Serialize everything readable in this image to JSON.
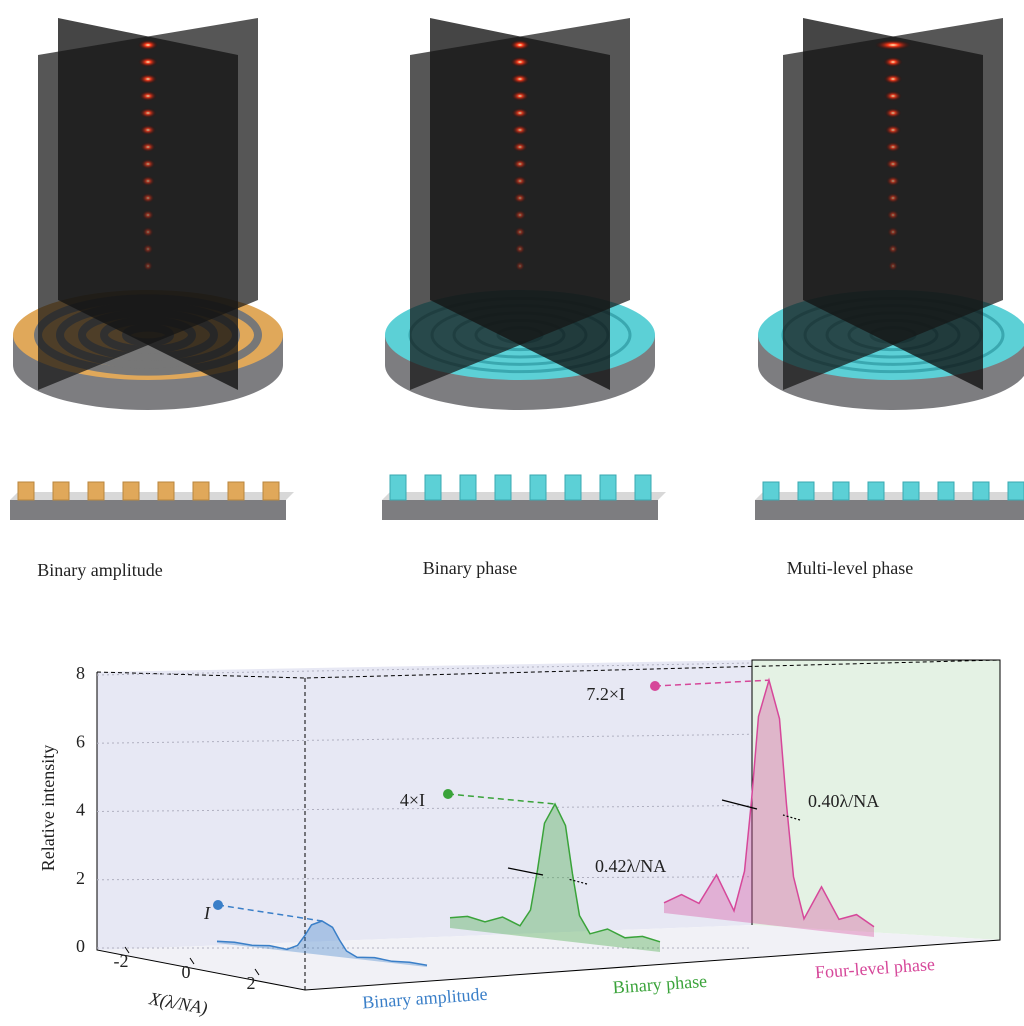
{
  "panels": [
    {
      "label": "Binary amplitude"
    },
    {
      "label": "Binary phase"
    },
    {
      "label": "Multi-level phase"
    }
  ],
  "chart_data": {
    "type": "line",
    "ylabel": "Relative intensity",
    "xlabel": "X(λ/NA)",
    "ylim": [
      0,
      8
    ],
    "yticks": [
      0,
      2,
      4,
      6,
      8
    ],
    "xlim": [
      -3,
      3
    ],
    "xticks": [
      -2,
      0,
      2
    ],
    "grid": true,
    "x": [
      -3,
      -2.5,
      -2,
      -1.5,
      -1,
      -0.7,
      -0.5,
      -0.3,
      0,
      0.3,
      0.5,
      0.7,
      1,
      1.5,
      2,
      2.5,
      3
    ],
    "series": [
      {
        "name": "Binary amplitude",
        "color": "#3a7fc8",
        "peak_label": "I",
        "values": [
          0.05,
          0.08,
          0.05,
          0.1,
          0.05,
          0.2,
          0.5,
          0.85,
          1,
          0.85,
          0.5,
          0.2,
          0.05,
          0.1,
          0.05,
          0.08,
          0.05
        ]
      },
      {
        "name": "Binary phase",
        "color": "#3aa33a",
        "peak_label": "4×I",
        "width_label": "0.42λ/NA",
        "values": [
          0.3,
          0.4,
          0.3,
          0.5,
          0.3,
          0.8,
          2,
          3.4,
          4,
          3.4,
          2,
          0.8,
          0.3,
          0.5,
          0.3,
          0.4,
          0.3
        ]
      },
      {
        "name": "Four-level phase",
        "color": "#d6489a",
        "peak_label": "7.2×I",
        "width_label": "0.40λ/NA",
        "values": [
          0.3,
          0.6,
          0.4,
          1.3,
          0.3,
          1.5,
          3.6,
          6.1,
          7.2,
          6.1,
          3.6,
          1.5,
          0.3,
          1.3,
          0.4,
          0.6,
          0.3
        ]
      }
    ]
  }
}
